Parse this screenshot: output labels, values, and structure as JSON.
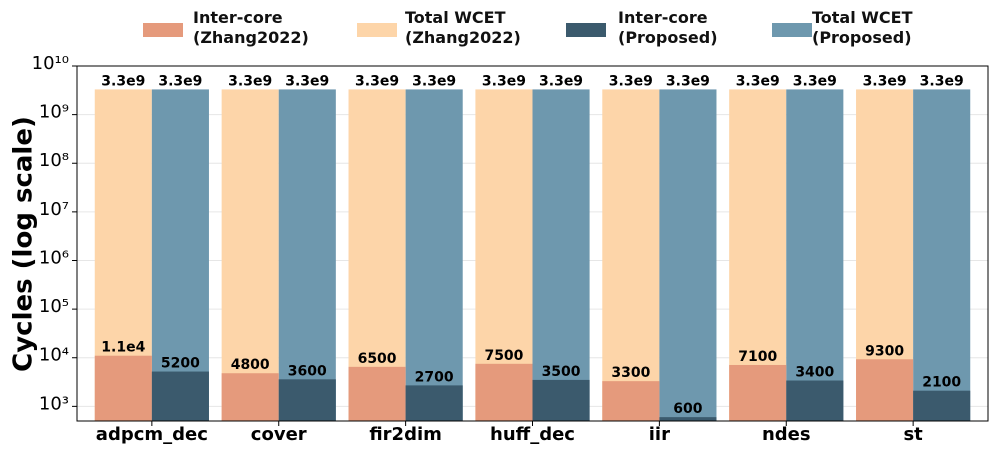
{
  "chart_data": {
    "type": "overlay_bar",
    "y_label": "Cycles (log scale)",
    "log_scale": true,
    "grid": true,
    "categories": [
      "adpcm_dec",
      "cover",
      "fir2dim",
      "huff_dec",
      "iir",
      "ndes",
      "st"
    ],
    "ylim": [
      500,
      10000000000
    ],
    "yticks": [
      {
        "value": 1000,
        "label": "10³"
      },
      {
        "value": 10000,
        "label": "10⁴"
      },
      {
        "value": 100000,
        "label": "10⁵"
      },
      {
        "value": 1000000,
        "label": "10⁶"
      },
      {
        "value": 10000000,
        "label": "10⁷"
      },
      {
        "value": 100000000,
        "label": "10⁸"
      },
      {
        "value": 1000000000,
        "label": "10⁹"
      },
      {
        "value": 10000000000,
        "label": "10¹⁰"
      }
    ],
    "series": [
      {
        "name": "Inter-core\n(Zhang2022)",
        "color": "#e59a7c",
        "group": 0,
        "values": [
          11000,
          4800,
          6500,
          7500,
          3300,
          7100,
          9300
        ],
        "value_labels": [
          "1.1e4",
          "4800",
          "6500",
          "7500",
          "3300",
          "7100",
          "9300"
        ]
      },
      {
        "name": "Total WCET\n(Zhang2022)",
        "color": "#fdd5a9",
        "group": 0,
        "values": [
          3300000000,
          3300000000,
          3300000000,
          3300000000,
          3300000000,
          3300000000,
          3300000000
        ],
        "value_labels": [
          "3.3e9",
          "3.3e9",
          "3.3e9",
          "3.3e9",
          "3.3e9",
          "3.3e9",
          "3.3e9"
        ]
      },
      {
        "name": "Inter-core\n(Proposed)",
        "color": "#3b5a6d",
        "group": 1,
        "values": [
          5200,
          3600,
          2700,
          3500,
          600,
          3400,
          2100
        ],
        "value_labels": [
          "5200",
          "3600",
          "2700",
          "3500",
          "600",
          "3400",
          "2100"
        ]
      },
      {
        "name": "Total WCET\n(Proposed)",
        "color": "#6e98ae",
        "group": 1,
        "values": [
          3300000000,
          3300000000,
          3300000000,
          3300000000,
          3300000000,
          3300000000,
          3300000000
        ],
        "value_labels": [
          "3.3e9",
          "3.3e9",
          "3.3e9",
          "3.3e9",
          "3.3e9",
          "3.3e9",
          "3.3e9"
        ]
      }
    ]
  }
}
